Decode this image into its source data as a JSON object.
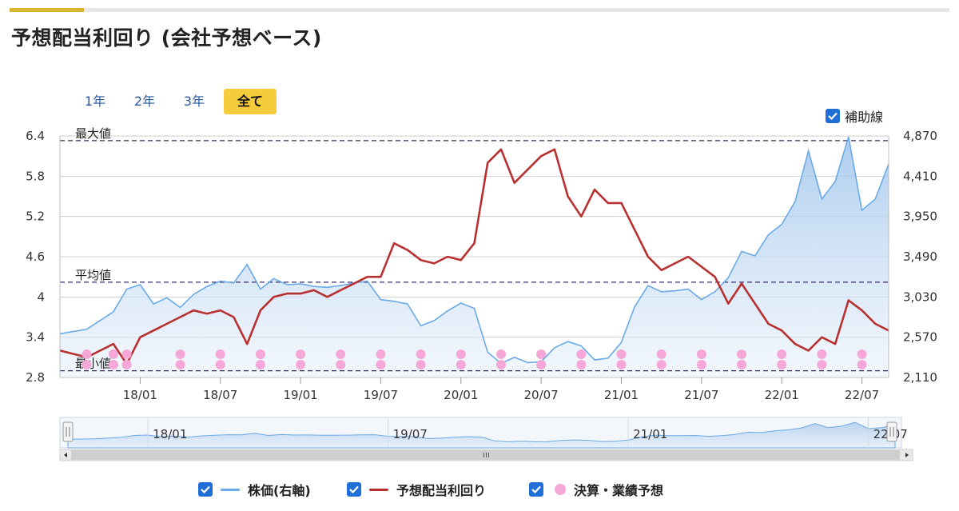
{
  "page_title": "予想配当利回り (会社予想ベース)",
  "tabs": [
    {
      "label": "1年",
      "active": false
    },
    {
      "label": "2年",
      "active": false
    },
    {
      "label": "3年",
      "active": false
    },
    {
      "label": "全て",
      "active": true
    }
  ],
  "aux_checkbox": {
    "label": "補助線",
    "checked": true
  },
  "legend": [
    {
      "label": "株価(右軸)",
      "checked": true,
      "color": "#6aaae6",
      "marker": "line"
    },
    {
      "label": "予想配当利回り",
      "checked": true,
      "color": "#b83030",
      "marker": "line"
    },
    {
      "label": "決算・業績予想",
      "checked": true,
      "color": "#f5a8d8",
      "marker": "dot"
    }
  ],
  "colors": {
    "accent": "#f5cc3c",
    "checkbox": "#1f6fd6",
    "stock_line": "#6aaae6",
    "yield_line": "#b83030",
    "event_dot": "#f5a8d8",
    "ref_line": "#3a2a6a"
  },
  "chart_data": {
    "type": "line",
    "title": "",
    "xlabel": "",
    "ylabel": "",
    "x_range": [
      "2017-07",
      "2022-09"
    ],
    "x_ticks": [
      "18/01",
      "18/07",
      "19/01",
      "19/07",
      "20/01",
      "20/07",
      "21/01",
      "21/07",
      "22/01",
      "22/07"
    ],
    "y_left": {
      "ticks": [
        "2.8",
        "3.4",
        "4",
        "4.6",
        "5.2",
        "5.8",
        "6.4"
      ],
      "ylim": [
        2.8,
        6.4
      ]
    },
    "y_right": {
      "ticks": [
        "2,110",
        "2,570",
        "3,030",
        "3,490",
        "3,950",
        "4,410",
        "4,870"
      ],
      "ylim": [
        2110,
        4870
      ]
    },
    "grid": true,
    "reference_lines": [
      {
        "label": "最大値",
        "value": 6.33
      },
      {
        "label": "平均値",
        "value": 4.22
      },
      {
        "label": "最小値",
        "value": 2.9
      }
    ],
    "series": [
      {
        "name": "株価(右軸)",
        "axis": "right",
        "x": [
          "2017-07",
          "2017-09",
          "2017-11",
          "2017-12",
          "2018-01",
          "2018-02",
          "2018-03",
          "2018-04",
          "2018-05",
          "2018-06",
          "2018-07",
          "2018-08",
          "2018-09",
          "2018-10",
          "2018-11",
          "2018-12",
          "2019-01",
          "2019-02",
          "2019-03",
          "2019-04",
          "2019-05",
          "2019-06",
          "2019-07",
          "2019-08",
          "2019-09",
          "2019-10",
          "2019-11",
          "2019-12",
          "2020-01",
          "2020-02",
          "2020-03",
          "2020-04",
          "2020-05",
          "2020-06",
          "2020-07",
          "2020-08",
          "2020-09",
          "2020-10",
          "2020-11",
          "2020-12",
          "2021-01",
          "2021-02",
          "2021-03",
          "2021-04",
          "2021-05",
          "2021-06",
          "2021-07",
          "2021-08",
          "2021-09",
          "2021-10",
          "2021-11",
          "2021-12",
          "2022-01",
          "2022-02",
          "2022-03",
          "2022-04",
          "2022-05",
          "2022-06",
          "2022-07",
          "2022-08",
          "2022-09"
        ],
        "values": [
          2610,
          2660,
          2860,
          3120,
          3170,
          2950,
          3020,
          2910,
          3060,
          3150,
          3210,
          3190,
          3400,
          3120,
          3240,
          3170,
          3180,
          3150,
          3140,
          3160,
          3190,
          3210,
          3000,
          2980,
          2950,
          2700,
          2760,
          2870,
          2960,
          2900,
          2400,
          2270,
          2340,
          2280,
          2290,
          2450,
          2520,
          2470,
          2310,
          2330,
          2510,
          2920,
          3160,
          3090,
          3100,
          3120,
          3000,
          3090,
          3250,
          3550,
          3500,
          3740,
          3860,
          4120,
          4700,
          4150,
          4350,
          4860,
          4020,
          4150,
          4550
        ]
      },
      {
        "name": "予想配当利回り",
        "axis": "left",
        "x": [
          "2017-07",
          "2017-09",
          "2017-11",
          "2017-12",
          "2018-01",
          "2018-02",
          "2018-03",
          "2018-04",
          "2018-05",
          "2018-06",
          "2018-07",
          "2018-08",
          "2018-09",
          "2018-10",
          "2018-11",
          "2018-12",
          "2019-01",
          "2019-02",
          "2019-03",
          "2019-04",
          "2019-05",
          "2019-06",
          "2019-07",
          "2019-08",
          "2019-09",
          "2019-10",
          "2019-11",
          "2019-12",
          "2020-01",
          "2020-02",
          "2020-03",
          "2020-04",
          "2020-05",
          "2020-06",
          "2020-07",
          "2020-08",
          "2020-09",
          "2020-10",
          "2020-11",
          "2020-12",
          "2021-01",
          "2021-02",
          "2021-03",
          "2021-04",
          "2021-05",
          "2021-06",
          "2021-07",
          "2021-08",
          "2021-09",
          "2021-10",
          "2021-11",
          "2021-12",
          "2022-01",
          "2022-02",
          "2022-03",
          "2022-04",
          "2022-05",
          "2022-06",
          "2022-07",
          "2022-08",
          "2022-09"
        ],
        "values": [
          3.2,
          3.1,
          3.3,
          3.0,
          3.4,
          3.5,
          3.6,
          3.7,
          3.8,
          3.75,
          3.8,
          3.7,
          3.3,
          3.8,
          4.0,
          4.05,
          4.05,
          4.1,
          4.0,
          4.1,
          4.2,
          4.3,
          4.3,
          4.8,
          4.7,
          4.55,
          4.5,
          4.6,
          4.55,
          4.8,
          6.0,
          6.2,
          5.7,
          5.9,
          6.1,
          6.2,
          5.5,
          5.2,
          5.6,
          5.4,
          5.4,
          5.0,
          4.6,
          4.4,
          4.5,
          4.6,
          4.45,
          4.3,
          3.9,
          4.2,
          3.9,
          3.6,
          3.5,
          3.3,
          3.2,
          3.4,
          3.3,
          3.95,
          3.8,
          3.6,
          3.5
        ]
      }
    ],
    "events": {
      "name": "決算・業績予想",
      "x": [
        "2017-09",
        "2017-11",
        "2017-12",
        "2018-04",
        "2018-07",
        "2018-10",
        "2018-10",
        "2019-01",
        "2019-04",
        "2019-07",
        "2019-10",
        "2020-01",
        "2020-04",
        "2020-07",
        "2020-10",
        "2021-01",
        "2021-04",
        "2021-07",
        "2021-10",
        "2022-01",
        "2022-04",
        "2022-07"
      ]
    }
  }
}
